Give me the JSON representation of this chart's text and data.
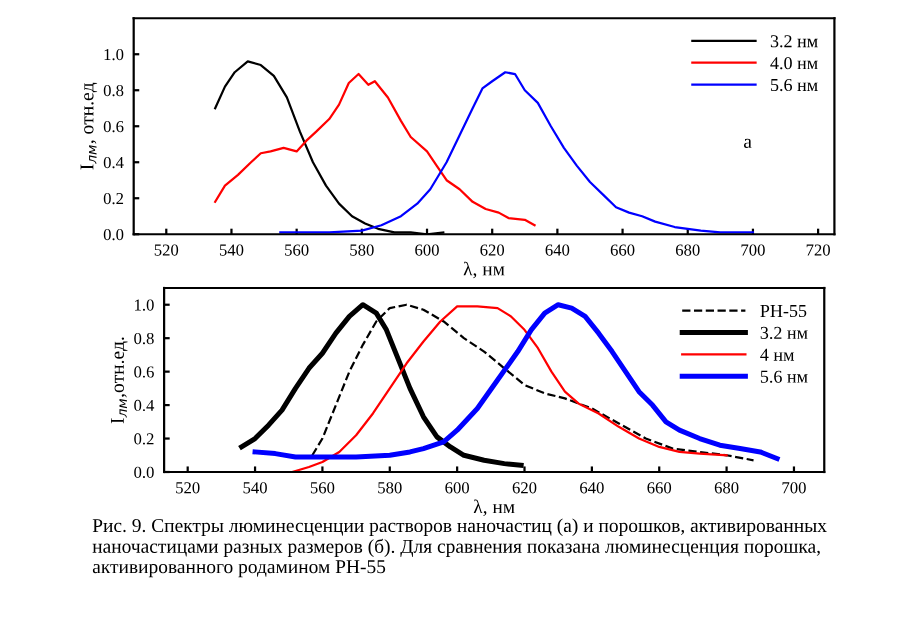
{
  "chart_data": [
    {
      "type": "line",
      "xlabel": "λ, нм",
      "ylabel": "I$_{лм}$, отн.ед",
      "xlim": [
        510,
        725
      ],
      "ylim": [
        0,
        1.2
      ],
      "xticks": [
        520,
        540,
        560,
        580,
        600,
        620,
        640,
        660,
        680,
        700,
        720
      ],
      "yticks": [
        {
          "value": 0,
          "label": "0.0"
        },
        {
          "value": 0.2,
          "label": "0.2"
        },
        {
          "value": 0.4,
          "label": "0.4"
        },
        {
          "value": 0.6,
          "label": "0.6"
        },
        {
          "value": 0.8,
          "label": "0.8"
        },
        {
          "value": 1.0,
          "label": "1.0"
        }
      ],
      "grid": false,
      "legend": "top right",
      "marker": "none",
      "line_style": "solid",
      "annotations": [
        "а"
      ],
      "series": [
        {
          "name": "3.2 нм",
          "color": "#000000",
          "x": [
            535,
            538,
            541,
            545,
            549,
            553,
            557,
            561,
            565,
            569,
            573,
            577,
            581,
            585,
            590,
            595,
            600,
            605
          ],
          "values": [
            0.7,
            0.82,
            0.9,
            0.96,
            0.94,
            0.88,
            0.76,
            0.57,
            0.4,
            0.27,
            0.17,
            0.1,
            0.06,
            0.03,
            0.01,
            0.01,
            0.0,
            0.01
          ]
        },
        {
          "name": "4.0 нм",
          "color": "#ff0000",
          "x": [
            535,
            538,
            542,
            546,
            549,
            552,
            556,
            560,
            563,
            566,
            570,
            573,
            576,
            579,
            582,
            584,
            588,
            592,
            595,
            600,
            603,
            606,
            610,
            614,
            618,
            622,
            625,
            630,
            633
          ],
          "values": [
            0.18,
            0.27,
            0.33,
            0.4,
            0.45,
            0.46,
            0.48,
            0.46,
            0.52,
            0.57,
            0.64,
            0.72,
            0.84,
            0.89,
            0.83,
            0.85,
            0.76,
            0.63,
            0.54,
            0.46,
            0.38,
            0.3,
            0.25,
            0.18,
            0.14,
            0.12,
            0.09,
            0.08,
            0.05
          ]
        },
        {
          "name": "5.6 нм",
          "color": "#0000ff",
          "x": [
            555,
            570,
            580,
            586,
            592,
            597,
            601,
            606,
            610,
            614,
            617,
            620,
            624,
            627,
            630,
            634,
            638,
            642,
            646,
            650,
            654,
            658,
            662,
            666,
            670,
            676,
            684,
            690,
            700
          ],
          "values": [
            0.01,
            0.01,
            0.02,
            0.05,
            0.1,
            0.17,
            0.25,
            0.4,
            0.55,
            0.7,
            0.81,
            0.85,
            0.9,
            0.89,
            0.8,
            0.73,
            0.6,
            0.48,
            0.38,
            0.29,
            0.22,
            0.15,
            0.12,
            0.1,
            0.07,
            0.04,
            0.02,
            0.01,
            0.01
          ]
        }
      ]
    },
    {
      "type": "line",
      "xlabel": "λ, нм",
      "ylabel": "I$_{лм}$,отн.ед.",
      "xlim": [
        513,
        709
      ],
      "ylim": [
        0,
        1.1
      ],
      "xticks": [
        520,
        540,
        560,
        580,
        600,
        620,
        640,
        660,
        680,
        700
      ],
      "yticks": [
        {
          "value": 0,
          "label": "0.0"
        },
        {
          "value": 0.2,
          "label": "0.2"
        },
        {
          "value": 0.4,
          "label": "0.4"
        },
        {
          "value": 0.6,
          "label": "0.6"
        },
        {
          "value": 0.8,
          "label": "0.8"
        },
        {
          "value": 1.0,
          "label": "1.0"
        }
      ],
      "grid": false,
      "legend": "top right",
      "marker": "none",
      "annotations": [
        "Рис. 9. Спектры люминесценции растворов наночастиц (а) и порошков, активированных наночастицами разных размеров (б). Для сравнения показана люминесценция порошка, активированного родамином РН-55"
      ],
      "series": [
        {
          "name": "РН-55",
          "color": "#000000",
          "line_style": "dashed",
          "x": [
            557,
            560,
            564,
            568,
            572,
            576,
            580,
            585,
            590,
            596,
            602,
            608,
            614,
            620,
            626,
            632,
            640,
            648,
            656,
            664,
            672,
            680,
            688
          ],
          "values": [
            0.1,
            0.2,
            0.4,
            0.6,
            0.76,
            0.9,
            0.98,
            1.0,
            0.97,
            0.9,
            0.8,
            0.72,
            0.62,
            0.52,
            0.47,
            0.44,
            0.38,
            0.29,
            0.2,
            0.14,
            0.12,
            0.1,
            0.07
          ]
        },
        {
          "name": "3.2 нм",
          "color": "#000000",
          "line_style": "solid",
          "x": [
            536,
            540,
            544,
            548,
            552,
            556,
            560,
            564,
            568,
            572,
            576,
            579,
            582,
            586,
            590,
            594,
            598,
            602,
            608,
            614,
            619
          ],
          "values": [
            0.15,
            0.2,
            0.28,
            0.37,
            0.5,
            0.62,
            0.71,
            0.83,
            0.93,
            1.0,
            0.95,
            0.85,
            0.7,
            0.5,
            0.33,
            0.21,
            0.15,
            0.1,
            0.07,
            0.05,
            0.04
          ]
        },
        {
          "name": "4 нм",
          "color": "#ff0000",
          "line_style": "solid",
          "x": [
            551,
            556,
            560,
            565,
            570,
            575,
            580,
            585,
            590,
            595,
            600,
            606,
            612,
            616,
            620,
            624,
            628,
            632,
            636,
            642,
            648,
            654,
            660,
            666,
            672,
            680
          ],
          "values": [
            0.0,
            0.03,
            0.06,
            0.12,
            0.22,
            0.35,
            0.5,
            0.65,
            0.78,
            0.9,
            0.99,
            0.99,
            0.98,
            0.93,
            0.85,
            0.74,
            0.6,
            0.48,
            0.41,
            0.35,
            0.27,
            0.2,
            0.15,
            0.12,
            0.11,
            0.1
          ]
        },
        {
          "name": "5.6 нм",
          "color": "#0000ff",
          "line_style": "solid",
          "x": [
            540,
            546,
            552,
            560,
            570,
            580,
            586,
            590,
            596,
            600,
            606,
            612,
            618,
            622,
            626,
            630,
            634,
            638,
            642,
            646,
            650,
            654,
            658,
            662,
            666,
            672,
            678,
            684,
            690,
            695
          ],
          "values": [
            0.12,
            0.11,
            0.09,
            0.09,
            0.09,
            0.1,
            0.12,
            0.14,
            0.18,
            0.25,
            0.38,
            0.55,
            0.72,
            0.85,
            0.95,
            1.0,
            0.98,
            0.93,
            0.83,
            0.72,
            0.6,
            0.48,
            0.4,
            0.3,
            0.25,
            0.2,
            0.16,
            0.14,
            0.12,
            0.08
          ]
        }
      ]
    }
  ]
}
